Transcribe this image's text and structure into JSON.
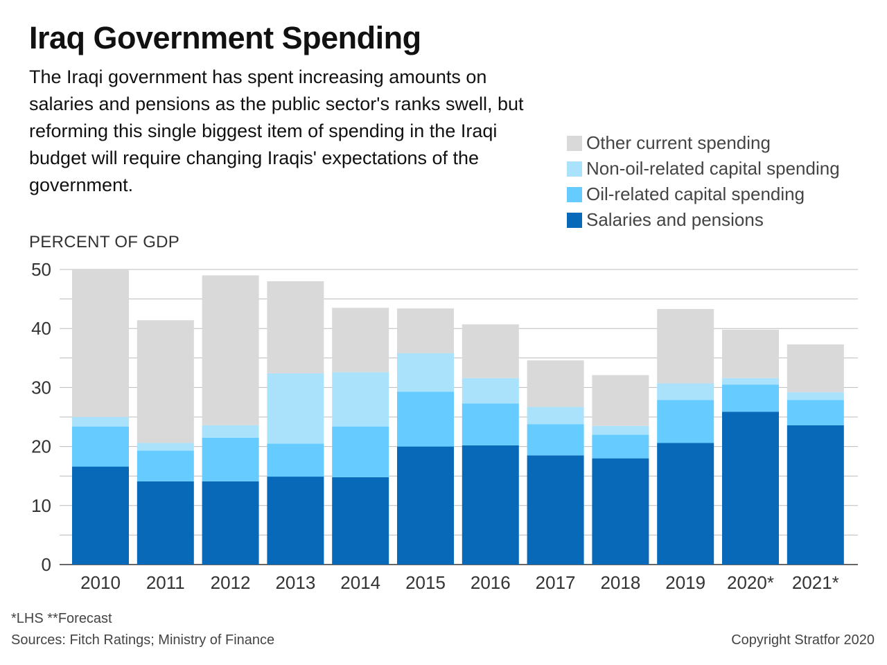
{
  "header": {
    "title": "Iraq Government Spending",
    "subtitle": "The Iraqi government has spent increasing amounts on salaries and pensions as the public sector's ranks swell, but reforming this single biggest item of spending in the Iraqi budget will require changing Iraqis' expectations of the government."
  },
  "footer": {
    "notes": "*LHS   **Forecast",
    "sources": "Sources: Fitch Ratings; Ministry of Finance",
    "copyright": "Copyright Stratfor 2020"
  },
  "chart_data": {
    "type": "bar",
    "stacked": true,
    "ylabel": "PERCENT OF GDP",
    "ylim": [
      0,
      50
    ],
    "yticks": [
      0,
      10,
      20,
      30,
      40,
      50
    ],
    "grid": true,
    "legend_placement": "top-right",
    "categories": [
      "2010",
      "2011",
      "2012",
      "2013",
      "2014",
      "2015",
      "2016",
      "2017",
      "2018",
      "2019",
      "2020*",
      "2021*"
    ],
    "legend_order": [
      "Other current spending",
      "Non-oil-related capital spending",
      "Oil-related capital spending",
      "Salaries and pensions"
    ],
    "series": [
      {
        "name": "Salaries and pensions",
        "color": "#0769b8",
        "values": [
          16.6,
          14.1,
          14.1,
          14.9,
          14.8,
          20.0,
          20.2,
          18.5,
          18.0,
          20.6,
          25.9,
          23.6
        ]
      },
      {
        "name": "Oil-related capital spending",
        "color": "#66ccff",
        "values": [
          6.8,
          5.2,
          7.4,
          5.6,
          8.6,
          9.3,
          7.1,
          5.3,
          4.0,
          7.3,
          4.6,
          4.3
        ]
      },
      {
        "name": "Non-oil-related capital spending",
        "color": "#aae2fc",
        "values": [
          1.6,
          1.3,
          2.1,
          11.9,
          9.2,
          6.5,
          4.3,
          2.9,
          1.5,
          2.8,
          1.1,
          1.3
        ]
      },
      {
        "name": "Other current spending",
        "color": "#d9d9d9",
        "values": [
          25.0,
          20.8,
          25.4,
          15.6,
          10.9,
          7.6,
          9.1,
          7.9,
          8.6,
          12.6,
          8.2,
          8.1
        ]
      }
    ],
    "gridline_color": "#bbbbbb"
  }
}
